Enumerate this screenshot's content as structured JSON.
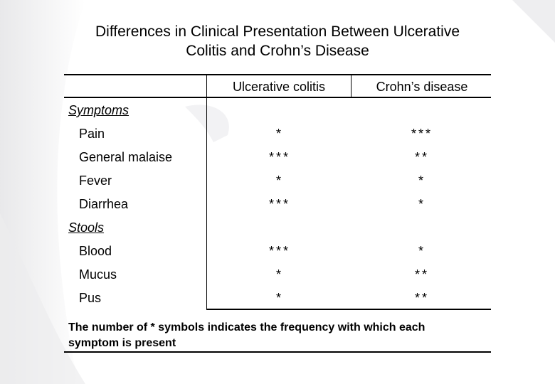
{
  "slide": {
    "title_line1": "Differences in Clinical Presentation Between Ulcerative",
    "title_line2": "Colitis and Crohn’s Disease"
  },
  "table": {
    "headers": [
      "Ulcerative colitis",
      "Crohn’s disease"
    ],
    "sections": [
      {
        "label": "Symptoms",
        "rows": [
          {
            "label": "Pain",
            "uc": "*",
            "cd": "***"
          },
          {
            "label": "General malaise",
            "uc": "***",
            "cd": "**"
          },
          {
            "label": "Fever",
            "uc": "*",
            "cd": "*"
          },
          {
            "label": "Diarrhea",
            "uc": "***",
            "cd": "*"
          }
        ]
      },
      {
        "label": "Stools",
        "rows": [
          {
            "label": "Blood",
            "uc": "***",
            "cd": "*"
          },
          {
            "label": "Mucus",
            "uc": "*",
            "cd": "**"
          },
          {
            "label": "Pus",
            "uc": "*",
            "cd": "**"
          }
        ]
      }
    ],
    "footnote_line1": "The number of * symbols indicates the frequency with which each",
    "footnote_line2": "symptom is present"
  }
}
